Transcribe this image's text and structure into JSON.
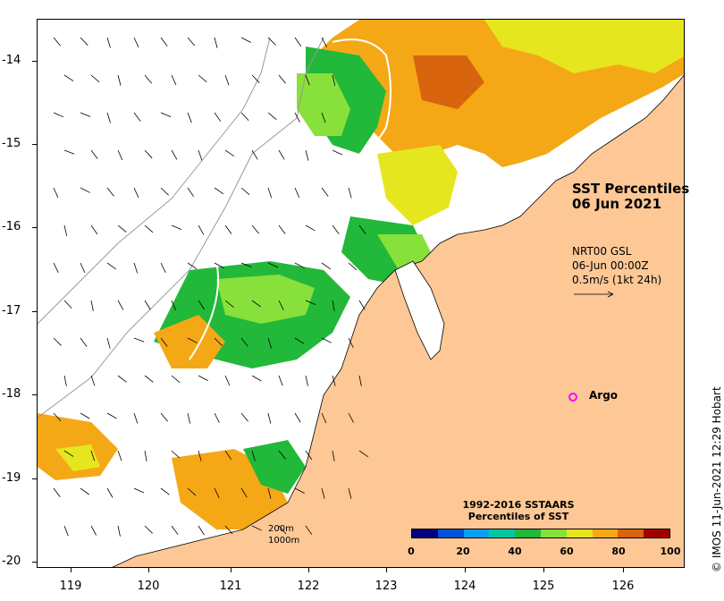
{
  "map": {
    "lat_labels": [
      "-14",
      "-15",
      "-16",
      "-17",
      "-18",
      "-19",
      "-20"
    ],
    "lon_labels": [
      "119",
      "120",
      "121",
      "122",
      "123",
      "124",
      "125",
      "126"
    ],
    "lat_values": [
      -14,
      -15,
      -16,
      -17,
      -18,
      -19,
      -20
    ],
    "lon_values": [
      119,
      120,
      121,
      122,
      123,
      124,
      125,
      126
    ],
    "lon_range": [
      118.6,
      126.8
    ],
    "lat_range": [
      -20.05,
      -13.45
    ]
  },
  "title": {
    "line1": "SST Percentiles",
    "line2": "06 Jun 2021"
  },
  "current_info": {
    "line1": "NRT00 GSL",
    "line2": "06-Jun 00:00Z",
    "line3": "0.5m/s (1kt 24h)"
  },
  "argo": {
    "label": "Argo",
    "lon": 125.3,
    "lat": -18.0,
    "color": "#ff00ff"
  },
  "credit": "© IMOS 11-Jun-2021 12:29 Hobart",
  "depth_contours": {
    "line1": "200m",
    "line2": "1000m"
  },
  "legend": {
    "title_line1": "1992-2016 SSTAARS",
    "title_line2": "Percentiles of SST",
    "ticks": [
      "0",
      "20",
      "40",
      "60",
      "80",
      "100"
    ],
    "colors": [
      "#00007f",
      "#0050d8",
      "#0aa0f0",
      "#00c8a0",
      "#22b83a",
      "#88e03a",
      "#e6e61e",
      "#f5a816",
      "#d8640e",
      "#a00000"
    ]
  },
  "colors": {
    "land": "#fdc896",
    "sea": "#ffffff"
  }
}
